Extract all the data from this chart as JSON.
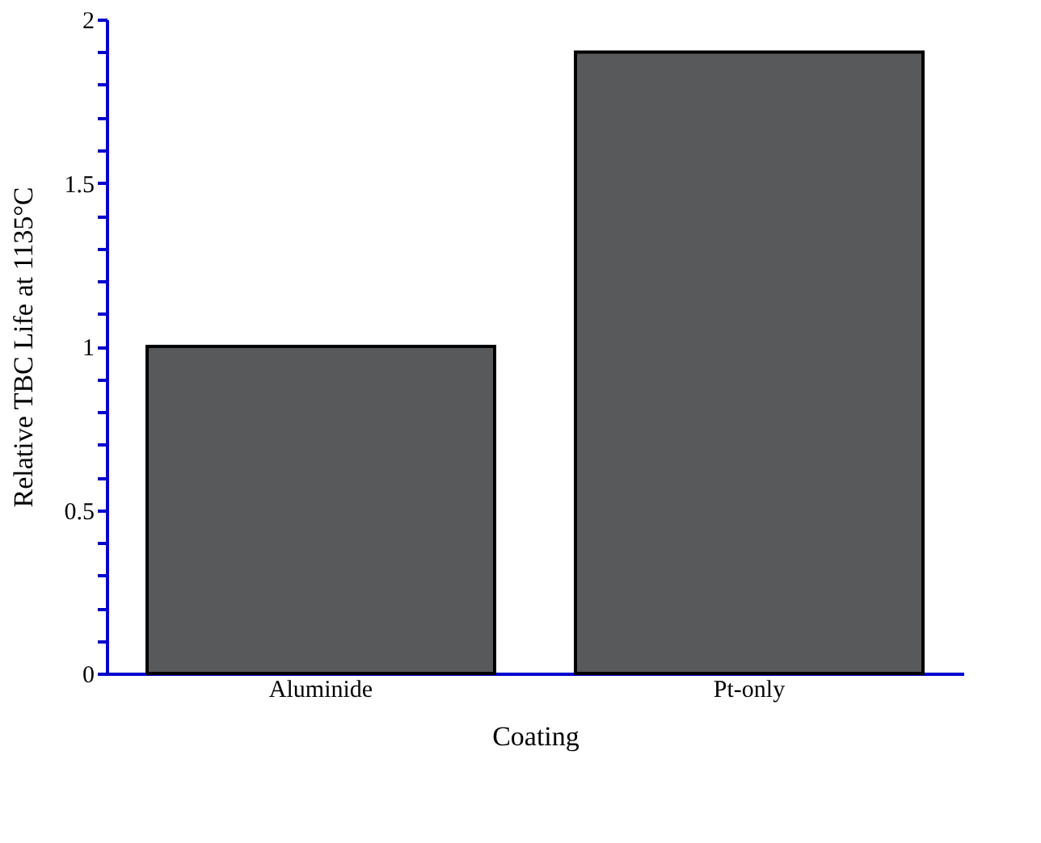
{
  "chart_data": {
    "type": "bar",
    "xlabel": "Coating",
    "ylabel": "Relative TBC Life at 1135°C",
    "categories": [
      "Aluminide",
      "Pt-only"
    ],
    "values": [
      1.0,
      1.9
    ],
    "color": "#58595b",
    "ylim": [
      0,
      2
    ],
    "yticks": [
      0,
      {
        "value": 0.1,
        "label": null
      },
      {
        "value": 0.2,
        "label": null
      },
      {
        "value": 0.3,
        "label": null
      },
      {
        "value": 0.4,
        "label": null
      },
      0.5,
      {
        "value": 0.6,
        "label": null
      },
      {
        "value": 0.7,
        "label": null
      },
      {
        "value": 0.8,
        "label": null
      },
      {
        "value": 0.9,
        "label": null
      },
      1,
      {
        "value": 1.1,
        "label": null
      },
      {
        "value": 1.2,
        "label": null
      },
      {
        "value": 1.3,
        "label": null
      },
      {
        "value": 1.4,
        "label": null
      },
      1.5,
      {
        "value": 1.6,
        "label": null
      },
      {
        "value": 1.7,
        "label": null
      },
      {
        "value": 1.8,
        "label": null
      },
      {
        "value": 1.9,
        "label": null
      },
      2
    ],
    "grid": false
  }
}
